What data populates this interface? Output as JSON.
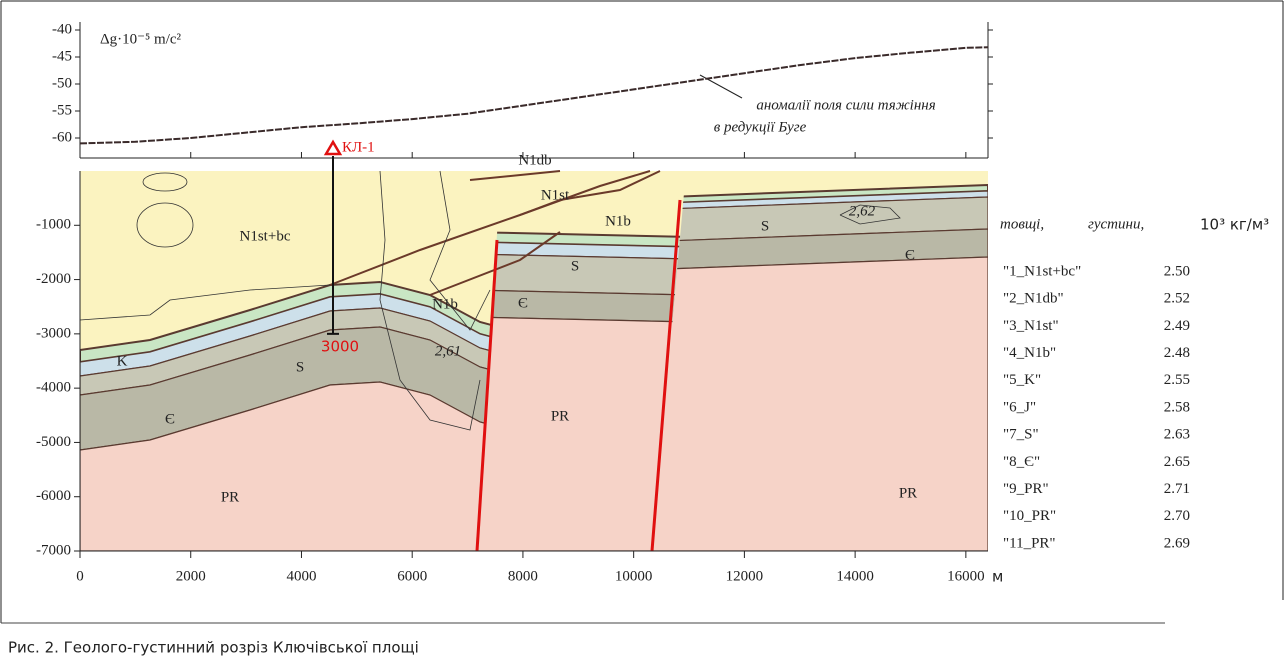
{
  "chart_data": [
    {
      "type": "line",
      "y_label": "Δg·10⁻⁵ m/c²",
      "annotation": [
        "аномалії поля сили тяжіння",
        "в редукції Буге"
      ],
      "x": [
        0,
        1000,
        2000,
        3000,
        4000,
        5000,
        6000,
        7000,
        8000,
        9000,
        10000,
        11000,
        12000,
        13000,
        14000,
        15000,
        16000,
        16400
      ],
      "values": [
        -61,
        -60.7,
        -60,
        -59,
        -58,
        -57.3,
        -56.5,
        -55.5,
        -54,
        -52.5,
        -51,
        -49.5,
        -48,
        -46.5,
        -45.2,
        -44.2,
        -43.3,
        -43.2
      ],
      "color": "#3a2a2a",
      "xlim": [
        0,
        16400
      ],
      "ylim": [
        -60,
        -40
      ],
      "xticks": [
        0,
        2000,
        4000,
        6000,
        8000,
        10000,
        12000,
        14000,
        16000
      ],
      "yticks": [
        -40,
        -45,
        -50,
        -55,
        -60
      ]
    },
    {
      "type": "section",
      "xlim": [
        0,
        16400
      ],
      "ylim": [
        -7000,
        0
      ],
      "xticks": [
        0,
        2000,
        4000,
        6000,
        8000,
        10000,
        12000,
        14000,
        16000
      ],
      "yticks": [
        -1000,
        -2000,
        -3000,
        -4000,
        -5000,
        -6000,
        -7000
      ],
      "x_unit": "м",
      "labels": [
        "N1st+bc",
        "N1db",
        "N1st",
        "N1b",
        "N1b",
        "K",
        "S",
        "Є",
        "S",
        "Є",
        "PR",
        "S",
        "Є",
        "PR",
        "PR",
        "2,62",
        "2,61"
      ],
      "well": {
        "name": "КЛ-1",
        "depth": 3000
      },
      "legend": {
        "title": [
          "товщі,",
          "густини,",
          "10³ кг/м³"
        ],
        "rows": [
          [
            "\"1_N1st+bc\"",
            "2.50"
          ],
          [
            "\"2_N1db\"",
            "2.52"
          ],
          [
            "\"3_N1st\"",
            "2.49"
          ],
          [
            "\"4_N1b\"",
            "2.48"
          ],
          [
            "\"5_K\"",
            "2.55"
          ],
          [
            "\"6_J\"",
            "2.58"
          ],
          [
            "\"7_S\"",
            "2.63"
          ],
          [
            "\"8_Є\"",
            "2.65"
          ],
          [
            "\"9_PR\"",
            "2.71"
          ],
          [
            "\"10_PR\"",
            "2.70"
          ],
          [
            "\"11_PR\"",
            "2.69"
          ]
        ]
      }
    }
  ],
  "caption": "Рис. 2. Геолого-густинний розріз Ключівської площі"
}
